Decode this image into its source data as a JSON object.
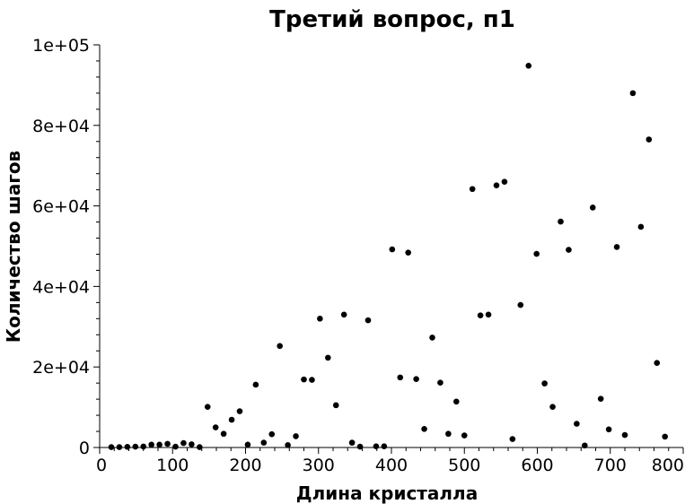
{
  "chart_data": {
    "type": "scatter",
    "title": "Третий вопрос, п1",
    "xlabel": "Длина кристалла",
    "ylabel": "Количество шагов",
    "xlim": [
      0,
      800
    ],
    "ylim": [
      0,
      100000
    ],
    "x_ticks": [
      {
        "value": 0,
        "label": "0"
      },
      {
        "value": 100,
        "label": "100"
      },
      {
        "value": 200,
        "label": "200"
      },
      {
        "value": 300,
        "label": "300"
      },
      {
        "value": 400,
        "label": "400"
      },
      {
        "value": 500,
        "label": "500"
      },
      {
        "value": 600,
        "label": "600"
      },
      {
        "value": 700,
        "label": "700"
      },
      {
        "value": 800,
        "label": "800"
      }
    ],
    "y_ticks": [
      {
        "value": 0,
        "label": "0"
      },
      {
        "value": 20000,
        "label": "2e+04"
      },
      {
        "value": 40000,
        "label": "4e+04"
      },
      {
        "value": 60000,
        "label": "6e+04"
      },
      {
        "value": 80000,
        "label": "8e+04"
      },
      {
        "value": 100000,
        "label": "1e+05"
      }
    ],
    "grid": false,
    "marker_color": "#000000",
    "points": [
      [
        16,
        100
      ],
      [
        27,
        100
      ],
      [
        38,
        150
      ],
      [
        49,
        200
      ],
      [
        60,
        250
      ],
      [
        71,
        700
      ],
      [
        82,
        700
      ],
      [
        93,
        900
      ],
      [
        104,
        200
      ],
      [
        115,
        1100
      ],
      [
        126,
        800
      ],
      [
        137,
        100
      ],
      [
        148,
        10100
      ],
      [
        159,
        5000
      ],
      [
        170,
        3400
      ],
      [
        181,
        6900
      ],
      [
        192,
        9000
      ],
      [
        203,
        700
      ],
      [
        214,
        15600
      ],
      [
        225,
        1200
      ],
      [
        236,
        3300
      ],
      [
        247,
        25200
      ],
      [
        258,
        600
      ],
      [
        269,
        2800
      ],
      [
        280,
        16900
      ],
      [
        291,
        16800
      ],
      [
        302,
        32000
      ],
      [
        313,
        22300
      ],
      [
        324,
        10500
      ],
      [
        335,
        33000
      ],
      [
        346,
        1200
      ],
      [
        357,
        200
      ],
      [
        368,
        31600
      ],
      [
        379,
        300
      ],
      [
        390,
        300
      ],
      [
        401,
        49200
      ],
      [
        412,
        17400
      ],
      [
        423,
        48400
      ],
      [
        434,
        17000
      ],
      [
        445,
        4600
      ],
      [
        456,
        27300
      ],
      [
        467,
        16100
      ],
      [
        478,
        3400
      ],
      [
        489,
        11400
      ],
      [
        500,
        3000
      ],
      [
        511,
        64200
      ],
      [
        522,
        32800
      ],
      [
        533,
        33000
      ],
      [
        544,
        65100
      ],
      [
        555,
        66000
      ],
      [
        566,
        2100
      ],
      [
        577,
        35400
      ],
      [
        588,
        94800
      ],
      [
        599,
        48100
      ],
      [
        610,
        15900
      ],
      [
        621,
        10100
      ],
      [
        632,
        56100
      ],
      [
        643,
        49100
      ],
      [
        654,
        5900
      ],
      [
        665,
        500
      ],
      [
        676,
        59600
      ],
      [
        687,
        12100
      ],
      [
        698,
        4500
      ],
      [
        709,
        49800
      ],
      [
        720,
        3100
      ],
      [
        731,
        88000
      ],
      [
        742,
        54800
      ],
      [
        753,
        76500
      ],
      [
        764,
        21000
      ],
      [
        775,
        2700
      ]
    ]
  }
}
